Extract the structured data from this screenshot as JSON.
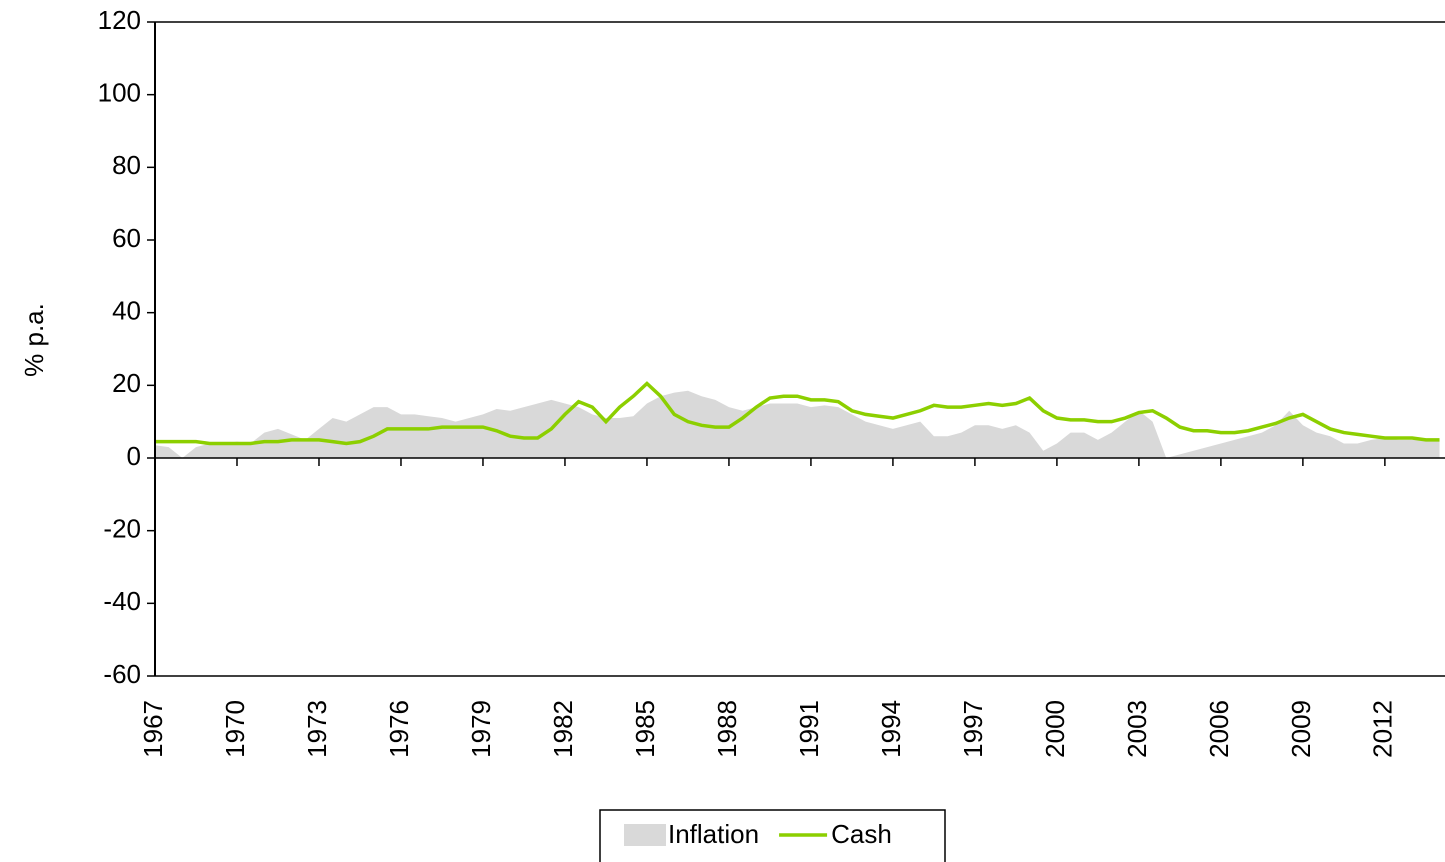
{
  "chart_data": {
    "type": "line",
    "y_label": "% p.a.",
    "x": [
      1967,
      1967.5,
      1968,
      1968.5,
      1969,
      1969.5,
      1970,
      1970.5,
      1971,
      1971.5,
      1972,
      1972.5,
      1973,
      1973.5,
      1974,
      1974.5,
      1975,
      1975.5,
      1976,
      1976.5,
      1977,
      1977.5,
      1978,
      1978.5,
      1979,
      1979.5,
      1980,
      1980.5,
      1981,
      1981.5,
      1982,
      1982.5,
      1983,
      1983.5,
      1984,
      1984.5,
      1985,
      1985.5,
      1986,
      1986.5,
      1987,
      1987.5,
      1988,
      1988.5,
      1989,
      1989.5,
      1990,
      1990.5,
      1991,
      1991.5,
      1992,
      1992.5,
      1993,
      1993.5,
      1994,
      1994.5,
      1995,
      1995.5,
      1996,
      1996.5,
      1997,
      1997.5,
      1998,
      1998.5,
      1999,
      1999.5,
      2000,
      2000.5,
      2001,
      2001.5,
      2002,
      2002.5,
      2003,
      2003.5,
      2004,
      2004.5,
      2005,
      2005.5,
      2006,
      2006.5,
      2007,
      2007.5,
      2008,
      2008.5,
      2009,
      2009.5,
      2010,
      2010.5,
      2011,
      2011.5,
      2012,
      2012.5,
      2013,
      2013.5,
      2014
    ],
    "series": [
      {
        "name": "Inflation",
        "style": "area",
        "color": "#d9d9d9",
        "values": [
          3.5,
          3,
          0,
          3,
          4,
          4,
          4.5,
          4,
          7,
          8,
          6.5,
          5,
          8,
          11,
          10,
          12,
          14,
          14,
          12,
          12,
          11.5,
          11,
          10,
          11,
          12,
          13.5,
          13,
          14,
          15,
          16,
          15,
          14,
          12,
          11,
          11,
          11.5,
          15,
          17,
          18,
          18.5,
          17,
          16,
          14,
          13,
          14,
          15,
          15,
          15,
          14,
          14.5,
          14,
          12,
          10,
          9,
          8,
          9,
          10,
          6,
          6,
          7,
          9,
          9,
          8,
          9,
          7,
          2,
          4,
          7,
          7,
          5,
          7,
          10,
          13,
          10,
          0,
          1,
          2,
          3,
          4,
          5,
          6,
          7,
          9,
          13,
          9,
          7,
          6,
          4,
          4,
          5,
          5.5,
          5,
          5,
          5,
          5
        ]
      },
      {
        "name": "Cash",
        "style": "line",
        "color": "#8ccf00",
        "values": [
          4.5,
          4.5,
          4.5,
          4.5,
          4,
          4,
          4,
          4,
          4.5,
          4.5,
          5,
          5,
          5,
          4.5,
          4,
          4.5,
          6,
          8,
          8,
          8,
          8,
          8.5,
          8.5,
          8.5,
          8.5,
          7.5,
          6,
          5.5,
          5.5,
          8,
          12,
          15.5,
          14,
          10,
          14,
          17,
          20.5,
          17,
          12,
          10,
          9,
          8.5,
          8.5,
          11,
          14,
          16.5,
          17,
          17,
          16,
          16,
          15.5,
          13,
          12,
          11.5,
          11,
          12,
          13,
          14.5,
          14,
          14,
          14.5,
          15,
          14.5,
          15,
          16.5,
          13,
          11,
          10.5,
          10.5,
          10,
          10,
          11,
          12.5,
          13,
          11,
          8.5,
          7.5,
          7.5,
          7,
          7,
          7.5,
          8.5,
          9.5,
          11,
          12,
          10,
          8,
          7,
          6.5,
          6,
          5.5,
          5.5,
          5.5,
          5,
          5
        ]
      }
    ],
    "xlim": [
      1967,
      2014.2
    ],
    "xticks": [
      1967,
      1970,
      1973,
      1976,
      1979,
      1982,
      1985,
      1988,
      1991,
      1994,
      1997,
      2000,
      2003,
      2006,
      2009,
      2012
    ],
    "ylim": [
      -60,
      120
    ],
    "yticks": [
      -60,
      -40,
      -20,
      0,
      20,
      40,
      60,
      80,
      100,
      120
    ],
    "grid": false
  }
}
